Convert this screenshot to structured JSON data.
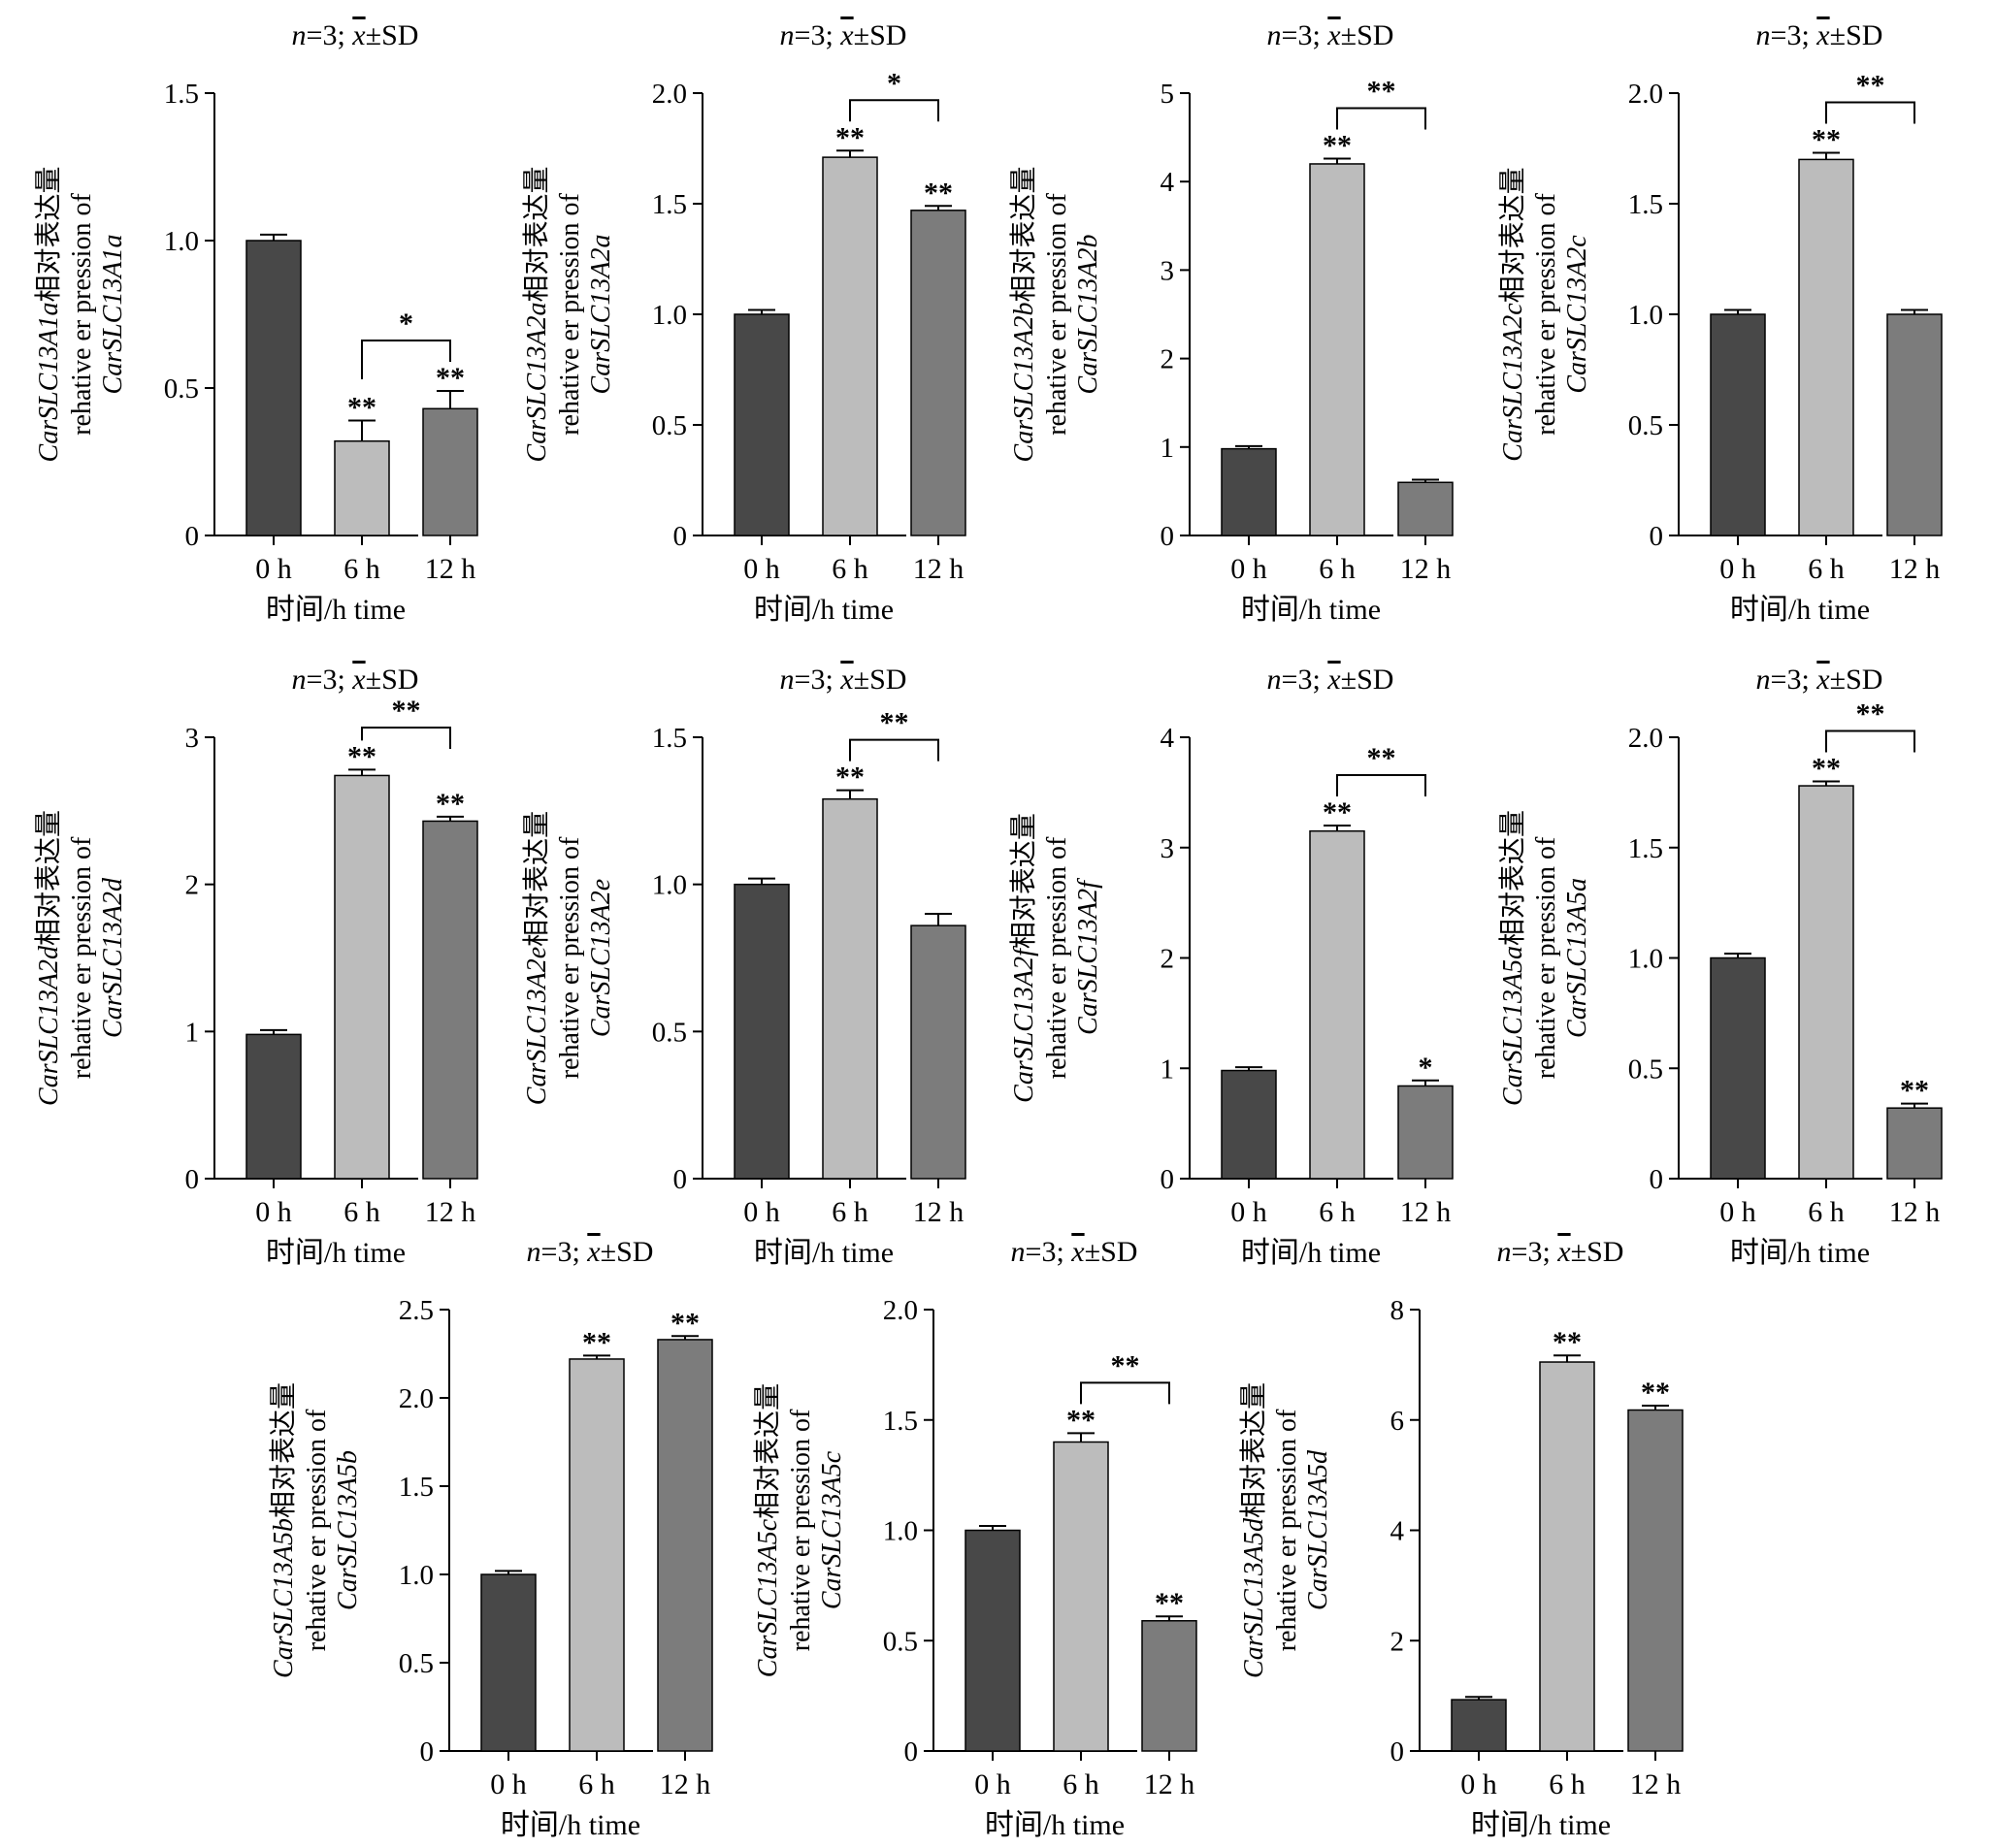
{
  "colors": {
    "bar_0h": "#484848",
    "bar_6h": "#bcbcbc",
    "bar_12h": "#7c7c7c",
    "axis": "#000000"
  },
  "chart_data": [
    {
      "type": "bar",
      "gene": "CarSLC13A1a",
      "note": {
        "n": "n",
        "rest": "=3; ",
        "mean": "x",
        "sd": "±SD"
      },
      "categories": [
        "0 h",
        "6 h",
        "12 h"
      ],
      "values": [
        1.0,
        0.32,
        0.43
      ],
      "errors": [
        0.02,
        0.07,
        0.06
      ],
      "ylim": [
        0,
        1.5
      ],
      "yticks": [
        0,
        0.5,
        1.0,
        1.5
      ],
      "ytick_labels": [
        "0",
        "0.5",
        "1.0",
        "1.5"
      ],
      "xlabel": "时间/h time",
      "ylabel": {
        "gene": "CarSLC13A1a",
        "cn": "相对表达量",
        "en": "rehative er pression of",
        "gene2": "CarSLC13A1a"
      },
      "bar_marks": [
        "",
        "**",
        "**"
      ],
      "bracket": {
        "from": 1,
        "to": 2,
        "label": "*"
      }
    },
    {
      "type": "bar",
      "gene": "CarSLC13A2a",
      "note": {
        "n": "n",
        "rest": "=3; ",
        "mean": "x",
        "sd": "±SD"
      },
      "categories": [
        "0 h",
        "6 h",
        "12 h"
      ],
      "values": [
        1.0,
        1.71,
        1.47
      ],
      "errors": [
        0.02,
        0.03,
        0.02
      ],
      "ylim": [
        0,
        2.0
      ],
      "yticks": [
        0,
        0.5,
        1.0,
        1.5,
        2.0
      ],
      "ytick_labels": [
        "0",
        "0.5",
        "1.0",
        "1.5",
        "2.0"
      ],
      "xlabel": "时间/h time",
      "ylabel": {
        "gene": "CarSLC13A2a",
        "cn": "相对表达量",
        "en": "rehative er pression of",
        "gene2": "CarSLC13A2a"
      },
      "bar_marks": [
        "",
        "**",
        "**"
      ],
      "bracket": {
        "from": 1,
        "to": 2,
        "label": "*"
      }
    },
    {
      "type": "bar",
      "gene": "CarSLC13A2b",
      "note": {
        "n": "n",
        "rest": "=3; ",
        "mean": "x",
        "sd": "±SD"
      },
      "categories": [
        "0 h",
        "6 h",
        "12 h"
      ],
      "values": [
        0.98,
        4.2,
        0.6
      ],
      "errors": [
        0.03,
        0.06,
        0.03
      ],
      "ylim": [
        0,
        5
      ],
      "yticks": [
        0,
        1,
        2,
        3,
        4,
        5
      ],
      "ytick_labels": [
        "0",
        "1",
        "2",
        "3",
        "4",
        "5"
      ],
      "xlabel": "时间/h time",
      "ylabel": {
        "gene": "CarSLC13A2b",
        "cn": "相对表达量",
        "en": "rehative er pression of",
        "gene2": "CarSLC13A2b"
      },
      "bar_marks": [
        "",
        "**",
        ""
      ],
      "bracket": {
        "from": 1,
        "to": 2,
        "label": "**"
      }
    },
    {
      "type": "bar",
      "gene": "CarSLC13A2c",
      "note": {
        "n": "n",
        "rest": "=3; ",
        "mean": "x",
        "sd": "±SD"
      },
      "categories": [
        "0 h",
        "6 h",
        "12 h"
      ],
      "values": [
        1.0,
        1.7,
        1.0
      ],
      "errors": [
        0.02,
        0.03,
        0.02
      ],
      "ylim": [
        0,
        2.0
      ],
      "yticks": [
        0,
        0.5,
        1.0,
        1.5,
        2.0
      ],
      "ytick_labels": [
        "0",
        "0.5",
        "1.0",
        "1.5",
        "2.0"
      ],
      "xlabel": "时间/h time",
      "ylabel": {
        "gene": "CarSLC13A2c",
        "cn": "相对表达量",
        "en": "rehative er pression of",
        "gene2": "CarSLC13A2c"
      },
      "bar_marks": [
        "",
        "**",
        ""
      ],
      "bracket": {
        "from": 1,
        "to": 2,
        "label": "**"
      }
    },
    {
      "type": "bar",
      "gene": "CarSLC13A2d",
      "note": {
        "n": "n",
        "rest": "=3; ",
        "mean": "x",
        "sd": "±SD"
      },
      "categories": [
        "0 h",
        "6 h",
        "12 h"
      ],
      "values": [
        0.98,
        2.74,
        2.43
      ],
      "errors": [
        0.03,
        0.04,
        0.03
      ],
      "ylim": [
        0,
        3
      ],
      "yticks": [
        0,
        1,
        2,
        3
      ],
      "ytick_labels": [
        "0",
        "1",
        "2",
        "3"
      ],
      "xlabel": "时间/h time",
      "ylabel": {
        "gene": "CarSLC13A2d",
        "cn": "相对表达量",
        "en": "rehative er pression of",
        "gene2": "CarSLC13A2d"
      },
      "bar_marks": [
        "",
        "**",
        "**"
      ],
      "bracket": {
        "from": 1,
        "to": 2,
        "label": "**"
      }
    },
    {
      "type": "bar",
      "gene": "CarSLC13A2e",
      "note": {
        "n": "n",
        "rest": "=3; ",
        "mean": "x",
        "sd": "±SD"
      },
      "categories": [
        "0 h",
        "6 h",
        "12 h"
      ],
      "values": [
        1.0,
        1.29,
        0.86
      ],
      "errors": [
        0.02,
        0.03,
        0.04
      ],
      "ylim": [
        0,
        1.5
      ],
      "yticks": [
        0,
        0.5,
        1.0,
        1.5
      ],
      "ytick_labels": [
        "0",
        "0.5",
        "1.0",
        "1.5"
      ],
      "xlabel": "时间/h time",
      "ylabel": {
        "gene": "CarSLC13A2e",
        "cn": "相对表达量",
        "en": "rehative er pression of",
        "gene2": "CarSLC13A2e"
      },
      "bar_marks": [
        "",
        "**",
        ""
      ],
      "bracket": {
        "from": 1,
        "to": 2,
        "label": "**"
      }
    },
    {
      "type": "bar",
      "gene": "CarSLC13A2f",
      "note": {
        "n": "n",
        "rest": "=3; ",
        "mean": "x",
        "sd": "±SD"
      },
      "categories": [
        "0 h",
        "6 h",
        "12 h"
      ],
      "values": [
        0.98,
        3.15,
        0.84
      ],
      "errors": [
        0.03,
        0.05,
        0.05
      ],
      "ylim": [
        0,
        4
      ],
      "yticks": [
        0,
        1,
        2,
        3,
        4
      ],
      "ytick_labels": [
        "0",
        "1",
        "2",
        "3",
        "4"
      ],
      "xlabel": "时间/h time",
      "ylabel": {
        "gene": "CarSLC13A2f",
        "cn": "相对表达量",
        "en": "rehative er pression of",
        "gene2": "CarSLC13A2f"
      },
      "bar_marks": [
        "",
        "**",
        "*"
      ],
      "bracket": {
        "from": 1,
        "to": 2,
        "label": "**"
      }
    },
    {
      "type": "bar",
      "gene": "CarSLC13A5a",
      "note": {
        "n": "n",
        "rest": "=3; ",
        "mean": "x",
        "sd": "±SD"
      },
      "categories": [
        "0 h",
        "6 h",
        "12 h"
      ],
      "values": [
        1.0,
        1.78,
        0.32
      ],
      "errors": [
        0.02,
        0.02,
        0.02
      ],
      "ylim": [
        0,
        2.0
      ],
      "yticks": [
        0,
        0.5,
        1.0,
        1.5,
        2.0
      ],
      "ytick_labels": [
        "0",
        "0.5",
        "1.0",
        "1.5",
        "2.0"
      ],
      "xlabel": "时间/h time",
      "ylabel": {
        "gene": "CarSLC13A5a",
        "cn": "相对表达量",
        "en": "rehative er pression of",
        "gene2": "CarSLC13A5a"
      },
      "bar_marks": [
        "",
        "**",
        "**"
      ],
      "bracket": {
        "from": 1,
        "to": 2,
        "label": "**"
      }
    },
    {
      "type": "bar",
      "gene": "CarSLC13A5b",
      "note": {
        "n": "n",
        "rest": "=3; ",
        "mean": "x",
        "sd": "±SD"
      },
      "categories": [
        "0 h",
        "6 h",
        "12 h"
      ],
      "values": [
        1.0,
        2.22,
        2.33
      ],
      "errors": [
        0.02,
        0.02,
        0.02
      ],
      "ylim": [
        0,
        2.5
      ],
      "yticks": [
        0,
        0.5,
        1.0,
        1.5,
        2.0,
        2.5
      ],
      "ytick_labels": [
        "0",
        "0.5",
        "1.0",
        "1.5",
        "2.0",
        "2.5"
      ],
      "xlabel": "时间/h time",
      "ylabel": {
        "gene": "CarSLC13A5b",
        "cn": "相对表达量",
        "en": "rehative er pression of",
        "gene2": "CarSLC13A5b"
      },
      "bar_marks": [
        "",
        "**",
        "**"
      ],
      "bracket": null
    },
    {
      "type": "bar",
      "gene": "CarSLC13A5c",
      "note": {
        "n": "n",
        "rest": "=3; ",
        "mean": "x",
        "sd": "±SD"
      },
      "categories": [
        "0 h",
        "6 h",
        "12 h"
      ],
      "values": [
        1.0,
        1.4,
        0.59
      ],
      "errors": [
        0.02,
        0.04,
        0.02
      ],
      "ylim": [
        0,
        2.0
      ],
      "yticks": [
        0,
        0.5,
        1.0,
        1.5,
        2.0
      ],
      "ytick_labels": [
        "0",
        "0.5",
        "1.0",
        "1.5",
        "2.0"
      ],
      "xlabel": "时间/h time",
      "ylabel": {
        "gene": "CarSLC13A5c",
        "cn": "相对表达量",
        "en": "rehative er pression of",
        "gene2": "CarSLC13A5c"
      },
      "bar_marks": [
        "",
        "**",
        "**"
      ],
      "bracket": {
        "from": 1,
        "to": 2,
        "label": "**"
      }
    },
    {
      "type": "bar",
      "gene": "CarSLC13A5d",
      "note": {
        "n": "n",
        "rest": "=3; ",
        "mean": "x",
        "sd": "±SD"
      },
      "categories": [
        "0 h",
        "6 h",
        "12 h"
      ],
      "values": [
        0.93,
        7.05,
        6.18
      ],
      "errors": [
        0.05,
        0.12,
        0.08
      ],
      "ylim": [
        0,
        8
      ],
      "yticks": [
        0,
        2,
        4,
        6,
        8
      ],
      "ytick_labels": [
        "0",
        "2",
        "4",
        "6",
        "8"
      ],
      "xlabel": "时间/h time",
      "ylabel": {
        "gene": "CarSLC13A5d",
        "cn": "相对表达量",
        "en": "rehative er pression of",
        "gene2": "CarSLC13A5d"
      },
      "bar_marks": [
        "",
        "**",
        "**"
      ],
      "bracket": null
    }
  ]
}
